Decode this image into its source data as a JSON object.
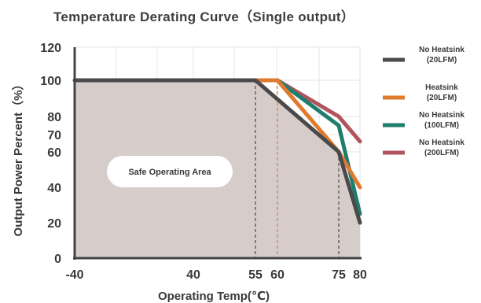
{
  "chart_data": {
    "type": "line",
    "title": "Temperature Derating Curve（Single output）",
    "xlabel": "Operating Temp(℃)",
    "ylabel": "Output Power Percent（%）",
    "xlim": [
      -40,
      80
    ],
    "ylim": [
      0,
      120
    ],
    "x_ticks": [
      -40,
      40,
      55,
      60,
      75,
      80
    ],
    "x_tick_labels": [
      "-40",
      "40",
      "55",
      "60",
      "75",
      "80"
    ],
    "y_ticks": [
      0,
      20,
      40,
      60,
      70,
      80,
      100,
      120
    ],
    "grid": true,
    "legend_position": "right",
    "series": [
      {
        "name": "No Heatsink (20LFM)",
        "color": "#4a4a4a",
        "x": [
          -40,
          55,
          75,
          80
        ],
        "y": [
          100,
          100,
          60,
          20
        ]
      },
      {
        "name": "Heatsink (20LFM)",
        "color": "#e07a2e",
        "x": [
          55,
          60,
          75,
          80
        ],
        "y": [
          100,
          100,
          60,
          40
        ]
      },
      {
        "name": "No Heatsink (100LFM)",
        "color": "#1f7d6e",
        "x": [
          55,
          60,
          75,
          80
        ],
        "y": [
          100,
          100,
          75,
          25
        ]
      },
      {
        "name": "No Heatsink (200LFM)",
        "color": "#b0545d",
        "x": [
          55,
          60,
          75,
          80
        ],
        "y": [
          100,
          100,
          80,
          66
        ]
      }
    ],
    "safe_area": {
      "label": "Safe Operating Area",
      "x": [
        -40,
        55,
        75,
        80,
        80,
        -40
      ],
      "y": [
        100,
        100,
        60,
        20,
        0,
        0
      ],
      "fill": "#d6cdca"
    },
    "reference_lines": [
      {
        "x": 55,
        "y_max": 100,
        "color": "#4a4a4a"
      },
      {
        "x": 60,
        "y_max": 100,
        "color": "#e07a2e"
      },
      {
        "x": 75,
        "y_max": 60,
        "color": "#4a4a4a"
      }
    ]
  },
  "legend": [
    {
      "line1": "No Heatsink",
      "line2": "(20LFM)",
      "color": "#4a4a4a"
    },
    {
      "line1": "Heatsink",
      "line2": "(20LFM)",
      "color": "#e07a2e"
    },
    {
      "line1": "No Heatsink",
      "line2": "(100LFM)",
      "color": "#1f7d6e"
    },
    {
      "line1": "No Heatsink",
      "line2": "(200LFM)",
      "color": "#b0545d"
    }
  ]
}
